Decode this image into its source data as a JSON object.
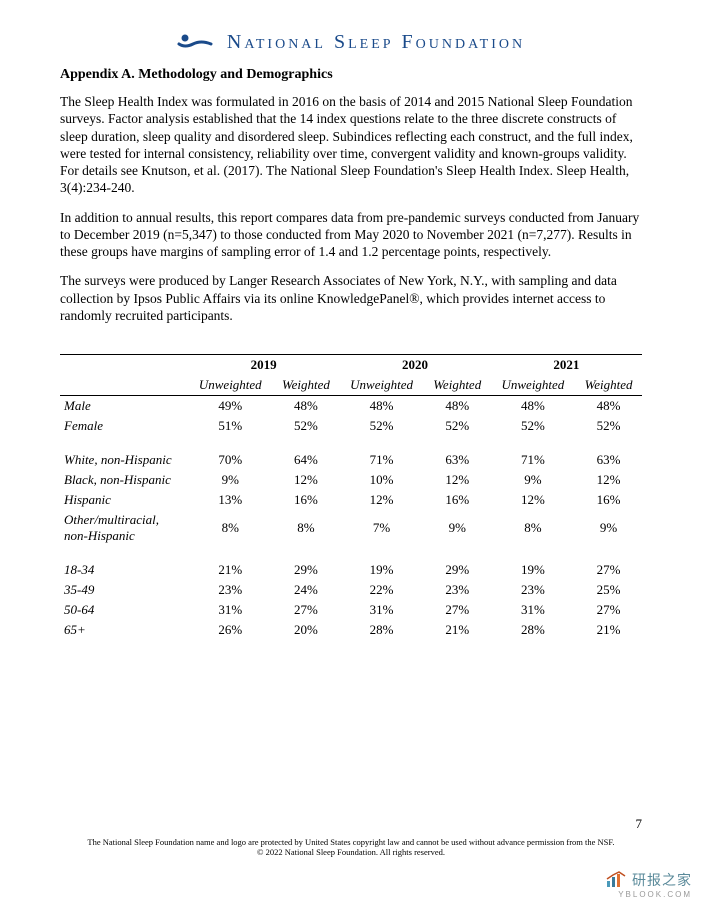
{
  "header": {
    "org_name": "National Sleep Foundation",
    "logo_color": "#1a4a8a"
  },
  "title": "Appendix A. Methodology and Demographics",
  "paragraphs": [
    "The Sleep Health Index was formulated in 2016 on the basis of 2014 and 2015 National Sleep Foundation surveys. Factor analysis established that the 14 index questions relate to the three discrete constructs of sleep duration, sleep quality and disordered sleep. Subindices reflecting each construct, and the full index, were tested for internal consistency, reliability over time, convergent validity and known-groups validity. For details see Knutson, et al. (2017). The National Sleep Foundation's Sleep Health Index. Sleep Health, 3(4):234-240.",
    "In addition to annual results, this report compares data from pre-pandemic surveys conducted from January to December 2019 (n=5,347) to those conducted from May 2020 to November 2021 (n=7,277). Results in these groups have margins of sampling error of 1.4 and 1.2 percentage points, respectively.",
    "The surveys were produced by Langer Research Associates of New York, N.Y., with sampling and data collection by Ipsos Public Affairs via its online KnowledgePanel®, which provides internet access to randomly recruited participants."
  ],
  "table": {
    "years": [
      "2019",
      "2020",
      "2021"
    ],
    "subheaders": [
      "Unweighted",
      "Weighted"
    ],
    "groups": [
      {
        "rows": [
          {
            "label": "Male",
            "values": [
              "49%",
              "48%",
              "48%",
              "48%",
              "48%",
              "48%"
            ]
          },
          {
            "label": "Female",
            "values": [
              "51%",
              "52%",
              "52%",
              "52%",
              "52%",
              "52%"
            ]
          }
        ]
      },
      {
        "rows": [
          {
            "label": "White, non-Hispanic",
            "values": [
              "70%",
              "64%",
              "71%",
              "63%",
              "71%",
              "63%"
            ]
          },
          {
            "label": "Black, non-Hispanic",
            "values": [
              "9%",
              "12%",
              "10%",
              "12%",
              "9%",
              "12%"
            ]
          },
          {
            "label": "Hispanic",
            "values": [
              "13%",
              "16%",
              "12%",
              "16%",
              "12%",
              "16%"
            ]
          },
          {
            "label": "Other/multiracial, non-Hispanic",
            "values": [
              "8%",
              "8%",
              "7%",
              "9%",
              "8%",
              "9%"
            ]
          }
        ]
      },
      {
        "rows": [
          {
            "label": "18-34",
            "values": [
              "21%",
              "29%",
              "19%",
              "29%",
              "19%",
              "27%"
            ]
          },
          {
            "label": "35-49",
            "values": [
              "23%",
              "24%",
              "22%",
              "23%",
              "23%",
              "25%"
            ]
          },
          {
            "label": "50-64",
            "values": [
              "31%",
              "27%",
              "31%",
              "27%",
              "31%",
              "27%"
            ]
          },
          {
            "label": "65+",
            "values": [
              "26%",
              "20%",
              "28%",
              "21%",
              "28%",
              "21%"
            ]
          }
        ]
      }
    ],
    "border_color": "#000000",
    "font_size": 13
  },
  "page_number": "7",
  "footer_lines": [
    "The National Sleep Foundation name and logo are protected by United States copyright law and cannot be used without advance permission from the NSF.",
    "© 2022 National Sleep Foundation. All rights reserved."
  ],
  "watermark": {
    "text": "研报之家",
    "url": "YBLOOK.COM",
    "color": "#5a8a9a"
  }
}
